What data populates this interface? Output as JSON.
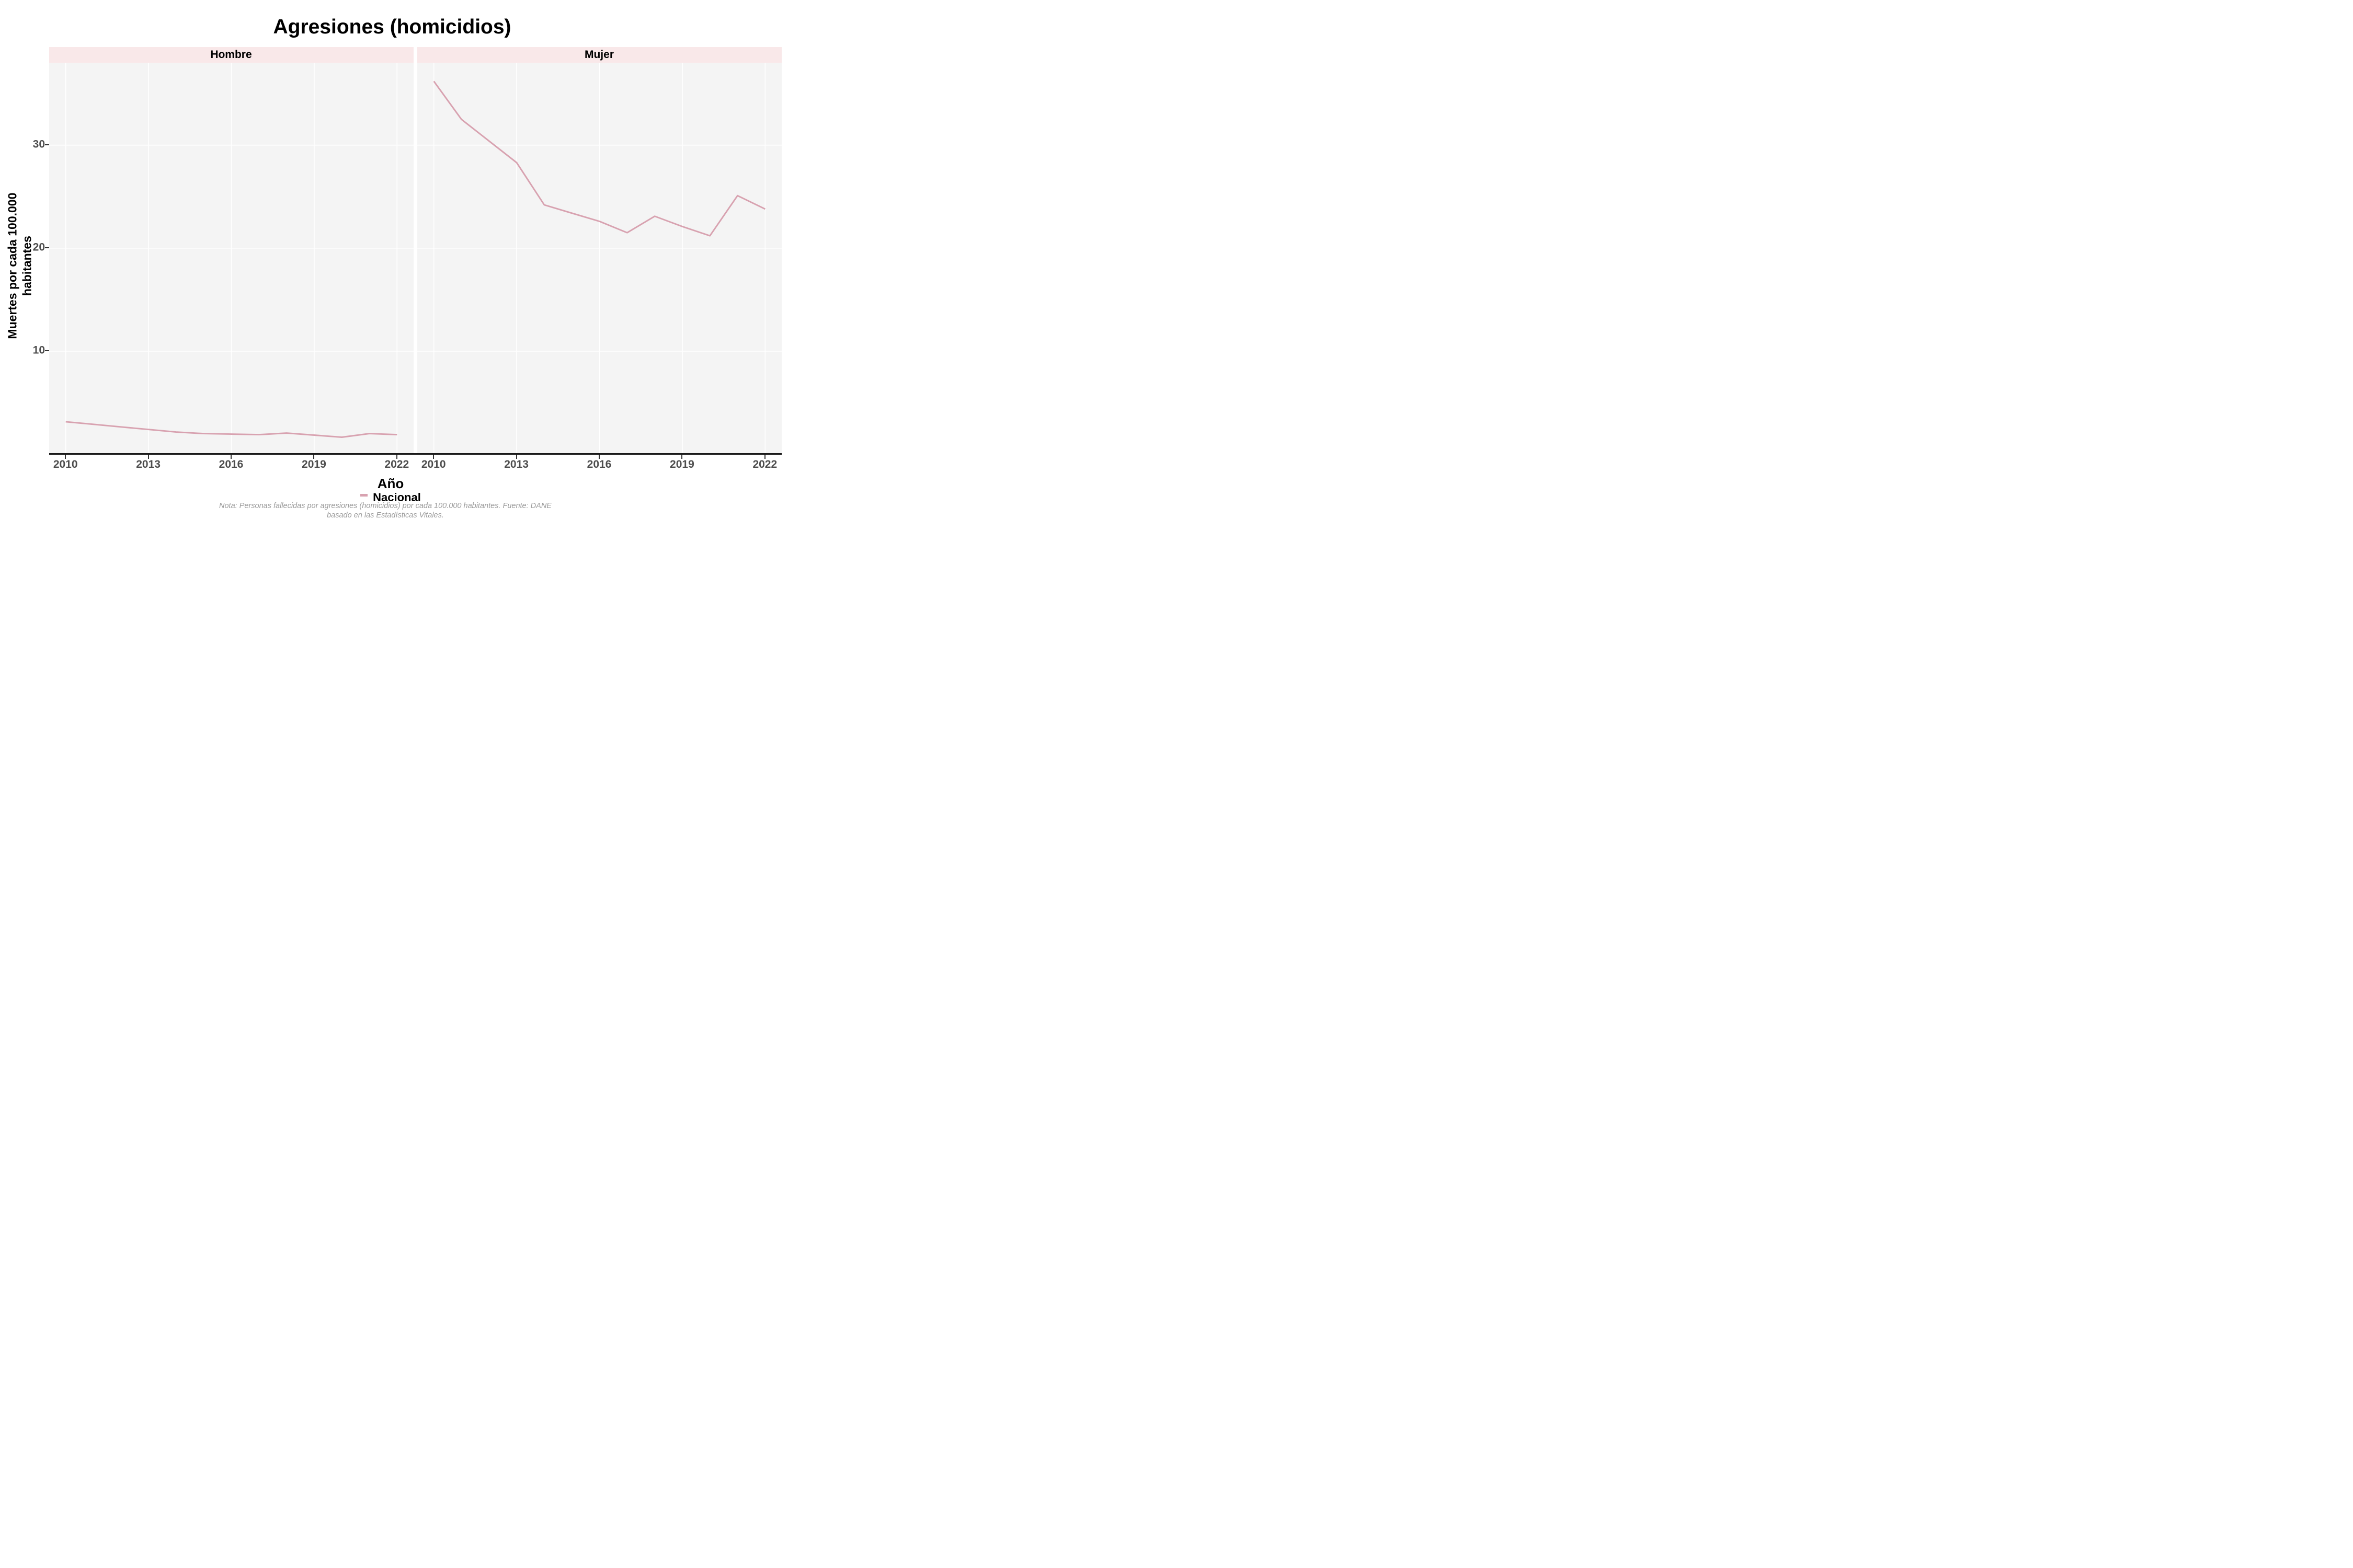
{
  "title": "Agresiones (homicidios)",
  "y_axis": {
    "title_line1": "Muertes por cada 100.000",
    "title_line2": "habitantes"
  },
  "x_axis": {
    "title": "Año"
  },
  "legend": {
    "label": "Nacional"
  },
  "footnote": {
    "line1": "Nota: Personas fallecidas por agresiones (homicidios) por cada 100.000 habitantes. Fuente: DANE",
    "line2": "basado en las Estadísticas Vitales."
  },
  "colors": {
    "line": "#d8a2b0",
    "strip_bg": "#f9e8e9",
    "panel_bg": "#f4f4f4",
    "gridline": "#ffffff",
    "axis_text": "#4d4d4d",
    "axis_line": "#1a1a1a",
    "footnote_text": "#9a9a9a"
  },
  "chart_data": {
    "type": "line",
    "facets": [
      "Hombre",
      "Mujer"
    ],
    "series_name": "Nacional",
    "x": [
      2010,
      2011,
      2012,
      2013,
      2014,
      2015,
      2016,
      2017,
      2018,
      2019,
      2020,
      2021,
      2022
    ],
    "x_ticks": [
      2010,
      2013,
      2016,
      2019,
      2022
    ],
    "y_ticks": [
      10,
      20,
      30
    ],
    "xlim": [
      2009.4,
      2022.6
    ],
    "ylim": [
      0,
      38
    ],
    "grid": "major-only, white on gray panel",
    "legend_position": "bottom",
    "panels": [
      {
        "label": "Hombre",
        "values": [
          3.15,
          2.9,
          2.65,
          2.4,
          2.15,
          2.0,
          1.95,
          1.9,
          2.05,
          1.85,
          1.65,
          2.0,
          1.9
        ]
      },
      {
        "label": "Mujer",
        "values": [
          36.2,
          32.5,
          30.4,
          28.3,
          24.2,
          23.4,
          22.6,
          21.5,
          23.1,
          22.1,
          21.2,
          25.1,
          23.8
        ]
      }
    ]
  }
}
